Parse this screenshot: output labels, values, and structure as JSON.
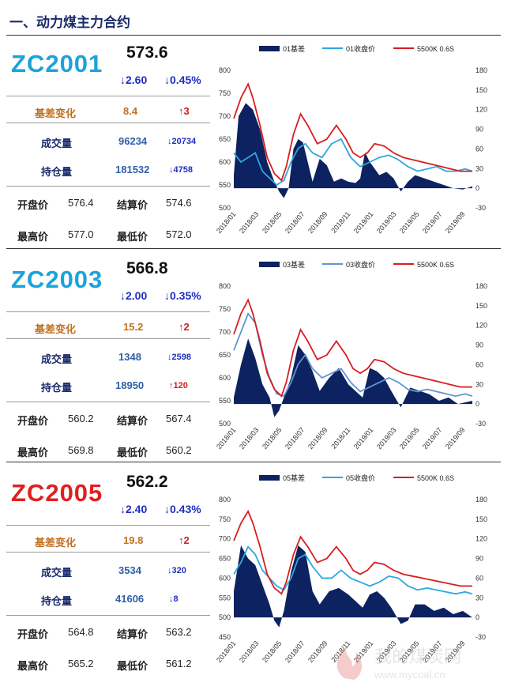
{
  "header": {
    "title": "一、动力煤主力合约"
  },
  "labels": {
    "basis_change": "基差变化",
    "volume": "成交量",
    "open_interest": "持仓量",
    "open": "开盘价",
    "settle": "结算价",
    "high": "最高价",
    "low": "最低价"
  },
  "contracts": [
    {
      "code": "ZC2001",
      "price": "573.6",
      "change": "↓2.60",
      "change_pct": "↓0.45%",
      "basis_change": "8.4",
      "basis_delta": "↑3",
      "volume": "96234",
      "volume_delta": "↓20734",
      "open_interest": "181532",
      "oi_delta": "↓4758",
      "open": "576.4",
      "settle": "574.6",
      "high": "577.0",
      "low": "572.0"
    },
    {
      "code": "ZC2003",
      "price": "566.8",
      "change": "↓2.00",
      "change_pct": "↓0.35%",
      "basis_change": "15.2",
      "basis_delta": "↑2",
      "volume": "1348",
      "volume_delta": "↓2598",
      "open_interest": "18950",
      "oi_delta": "↑120",
      "open": "560.2",
      "settle": "567.4",
      "high": "569.8",
      "low": "560.2"
    },
    {
      "code": "ZC2005",
      "price": "562.2",
      "change": "↓2.40",
      "change_pct": "↓0.43%",
      "basis_change": "19.8",
      "basis_delta": "↑2",
      "volume": "3534",
      "volume_delta": "↓320",
      "open_interest": "41606",
      "oi_delta": "↓8",
      "open": "564.8",
      "settle": "563.2",
      "high": "565.2",
      "low": "561.2"
    }
  ],
  "colors": {
    "code_blue": "#1ca3d9",
    "code_red": "#e02020",
    "basis_fill": "#0d2260",
    "close_line": "#2ea7e0",
    "close_line_alt": "#5f96d0",
    "spot_line": "#d81e1e"
  },
  "watermark": {
    "text": "我的煤炭网",
    "url": "www.mycoal.cn"
  },
  "chart_data": [
    {
      "type": "area",
      "legend": [
        "01基差",
        "01收盘价",
        "5500K 0.6S"
      ],
      "legend_position": "top",
      "x_ticks": [
        "2018/01",
        "2018/03",
        "2018/05",
        "2018/07",
        "2018/09",
        "2018/11",
        "2019/01",
        "2019/03",
        "2019/05",
        "2019/07",
        "2019/09"
      ],
      "y_left": {
        "min": 500,
        "max": 800,
        "ticks": [
          500,
          550,
          600,
          650,
          700,
          750,
          800
        ]
      },
      "y_right": {
        "min": -30,
        "max": 180,
        "ticks": [
          -30,
          0,
          30,
          60,
          90,
          120,
          150,
          180
        ]
      },
      "series": [
        {
          "name": "01基差",
          "axis": "right",
          "kind": "area",
          "x": [
            0,
            0.02,
            0.05,
            0.08,
            0.11,
            0.14,
            0.17,
            0.19,
            0.21,
            0.23,
            0.25,
            0.27,
            0.29,
            0.31,
            0.33,
            0.36,
            0.39,
            0.42,
            0.45,
            0.48,
            0.51,
            0.53,
            0.55,
            0.57,
            0.59,
            0.61,
            0.64,
            0.67,
            0.7,
            0.73,
            0.76,
            0.8,
            0.84,
            0.88,
            0.92,
            0.96,
            1.0
          ],
          "values": [
            20,
            110,
            130,
            120,
            90,
            40,
            10,
            -5,
            -15,
            0,
            60,
            75,
            70,
            40,
            10,
            45,
            35,
            10,
            15,
            10,
            8,
            15,
            55,
            40,
            30,
            20,
            25,
            15,
            -5,
            10,
            20,
            15,
            10,
            5,
            0,
            -2,
            3
          ]
        },
        {
          "name": "01收盘价",
          "axis": "left",
          "kind": "line",
          "x": [
            0,
            0.03,
            0.06,
            0.09,
            0.12,
            0.15,
            0.18,
            0.21,
            0.24,
            0.27,
            0.3,
            0.33,
            0.37,
            0.41,
            0.45,
            0.49,
            0.53,
            0.57,
            0.61,
            0.65,
            0.69,
            0.73,
            0.77,
            0.81,
            0.85,
            0.89,
            0.93,
            0.97,
            1.0
          ],
          "values": [
            620,
            600,
            610,
            620,
            580,
            565,
            550,
            560,
            600,
            630,
            640,
            620,
            610,
            640,
            650,
            610,
            590,
            600,
            610,
            615,
            605,
            590,
            580,
            585,
            590,
            580,
            580,
            585,
            580
          ]
        },
        {
          "name": "5500K 0.6S",
          "axis": "left",
          "kind": "line",
          "x": [
            0,
            0.03,
            0.06,
            0.08,
            0.11,
            0.14,
            0.17,
            0.2,
            0.22,
            0.25,
            0.28,
            0.31,
            0.35,
            0.39,
            0.43,
            0.47,
            0.5,
            0.53,
            0.56,
            0.59,
            0.63,
            0.67,
            0.71,
            0.75,
            0.79,
            0.83,
            0.87,
            0.91,
            0.95,
            1.0
          ],
          "values": [
            695,
            740,
            770,
            740,
            680,
            610,
            575,
            560,
            590,
            660,
            705,
            680,
            640,
            650,
            680,
            650,
            620,
            610,
            620,
            640,
            635,
            620,
            610,
            605,
            600,
            595,
            590,
            585,
            580,
            580
          ]
        }
      ]
    },
    {
      "type": "area",
      "legend": [
        "03基差",
        "03收盘价",
        "5500K 0.6S"
      ],
      "legend_position": "top",
      "x_ticks": [
        "2018/01",
        "2018/03",
        "2018/05",
        "2018/07",
        "2018/09",
        "2018/11",
        "2019/01",
        "2019/03",
        "2019/05",
        "2019/07",
        "2019/09"
      ],
      "y_left": {
        "min": 500,
        "max": 800,
        "ticks": [
          500,
          550,
          600,
          650,
          700,
          750,
          800
        ]
      },
      "y_right": {
        "min": -30,
        "max": 180,
        "ticks": [
          -30,
          0,
          30,
          60,
          90,
          120,
          150,
          180
        ]
      },
      "series": [
        {
          "name": "03基差",
          "axis": "right",
          "kind": "area",
          "x": [
            0,
            0.03,
            0.06,
            0.09,
            0.12,
            0.15,
            0.17,
            0.19,
            0.21,
            0.24,
            0.27,
            0.3,
            0.33,
            0.36,
            0.4,
            0.44,
            0.48,
            0.51,
            0.54,
            0.57,
            0.6,
            0.63,
            0.66,
            0.7,
            0.74,
            0.78,
            0.82,
            0.86,
            0.9,
            0.94,
            1.0
          ],
          "values": [
            10,
            60,
            100,
            70,
            30,
            10,
            -20,
            -10,
            10,
            40,
            90,
            75,
            50,
            20,
            40,
            55,
            30,
            20,
            10,
            55,
            50,
            40,
            20,
            -5,
            25,
            20,
            15,
            5,
            10,
            0,
            5
          ]
        },
        {
          "name": "03收盘价",
          "axis": "left",
          "kind": "line",
          "x": [
            0,
            0.03,
            0.06,
            0.09,
            0.12,
            0.15,
            0.18,
            0.21,
            0.24,
            0.27,
            0.3,
            0.33,
            0.37,
            0.41,
            0.45,
            0.49,
            0.53,
            0.57,
            0.61,
            0.65,
            0.69,
            0.73,
            0.77,
            0.81,
            0.85,
            0.89,
            0.93,
            0.97,
            1.0
          ],
          "values": [
            660,
            700,
            740,
            720,
            650,
            600,
            565,
            560,
            590,
            630,
            650,
            620,
            600,
            610,
            620,
            590,
            570,
            580,
            590,
            600,
            590,
            575,
            570,
            575,
            570,
            565,
            560,
            565,
            560
          ]
        },
        {
          "name": "5500K 0.6S",
          "axis": "left",
          "kind": "line",
          "x": [
            0,
            0.03,
            0.06,
            0.08,
            0.11,
            0.14,
            0.17,
            0.2,
            0.22,
            0.25,
            0.28,
            0.31,
            0.35,
            0.39,
            0.43,
            0.47,
            0.5,
            0.53,
            0.56,
            0.59,
            0.63,
            0.67,
            0.71,
            0.75,
            0.79,
            0.83,
            0.87,
            0.91,
            0.95,
            1.0
          ],
          "values": [
            695,
            740,
            770,
            740,
            680,
            610,
            575,
            560,
            590,
            660,
            705,
            680,
            640,
            650,
            680,
            650,
            620,
            610,
            620,
            640,
            635,
            620,
            610,
            605,
            600,
            595,
            590,
            585,
            580,
            580
          ]
        }
      ]
    },
    {
      "type": "area",
      "legend": [
        "05基差",
        "05收盘价",
        "5500K 0.6S"
      ],
      "legend_position": "top",
      "x_ticks": [
        "2018/01",
        "2018/03",
        "2018/05",
        "2018/07",
        "2018/09",
        "2018/11",
        "2019/01",
        "2019/03",
        "2019/05",
        "2019/07",
        "2019/09"
      ],
      "y_left": {
        "min": 450,
        "max": 800,
        "ticks": [
          450,
          500,
          550,
          600,
          650,
          700,
          750,
          800
        ]
      },
      "y_right": {
        "min": -30,
        "max": 180,
        "ticks": [
          -30,
          0,
          30,
          60,
          90,
          120,
          150,
          180
        ]
      },
      "series": [
        {
          "name": "05基差",
          "axis": "right",
          "kind": "area",
          "x": [
            0,
            0.03,
            0.06,
            0.09,
            0.12,
            0.15,
            0.17,
            0.19,
            0.21,
            0.24,
            0.27,
            0.3,
            0.33,
            0.36,
            0.4,
            0.44,
            0.48,
            0.51,
            0.54,
            0.57,
            0.6,
            0.63,
            0.66,
            0.7,
            0.73,
            0.76,
            0.8,
            0.84,
            0.88,
            0.92,
            0.96,
            1.0
          ],
          "values": [
            40,
            110,
            90,
            80,
            50,
            20,
            -5,
            -15,
            10,
            70,
            110,
            100,
            40,
            20,
            40,
            45,
            35,
            25,
            15,
            35,
            40,
            30,
            15,
            -10,
            -5,
            20,
            20,
            10,
            15,
            5,
            10,
            0
          ]
        },
        {
          "name": "05收盘价",
          "axis": "left",
          "kind": "line",
          "x": [
            0,
            0.03,
            0.06,
            0.09,
            0.12,
            0.15,
            0.18,
            0.21,
            0.24,
            0.27,
            0.3,
            0.33,
            0.37,
            0.41,
            0.45,
            0.49,
            0.53,
            0.57,
            0.61,
            0.65,
            0.69,
            0.73,
            0.77,
            0.81,
            0.85,
            0.89,
            0.93,
            0.97,
            1.0
          ],
          "values": [
            610,
            640,
            680,
            660,
            620,
            600,
            580,
            570,
            600,
            650,
            660,
            630,
            600,
            600,
            620,
            600,
            590,
            580,
            590,
            605,
            600,
            580,
            570,
            575,
            570,
            565,
            560,
            565,
            560
          ]
        },
        {
          "name": "5500K 0.6S",
          "axis": "left",
          "kind": "line",
          "x": [
            0,
            0.03,
            0.06,
            0.08,
            0.11,
            0.14,
            0.17,
            0.2,
            0.22,
            0.25,
            0.28,
            0.31,
            0.35,
            0.39,
            0.43,
            0.47,
            0.5,
            0.53,
            0.56,
            0.59,
            0.63,
            0.67,
            0.71,
            0.75,
            0.79,
            0.83,
            0.87,
            0.91,
            0.95,
            1.0
          ],
          "values": [
            695,
            740,
            770,
            740,
            680,
            610,
            575,
            560,
            590,
            660,
            705,
            680,
            640,
            650,
            680,
            650,
            620,
            610,
            620,
            640,
            635,
            620,
            610,
            605,
            600,
            595,
            590,
            585,
            580,
            580
          ]
        }
      ]
    }
  ]
}
